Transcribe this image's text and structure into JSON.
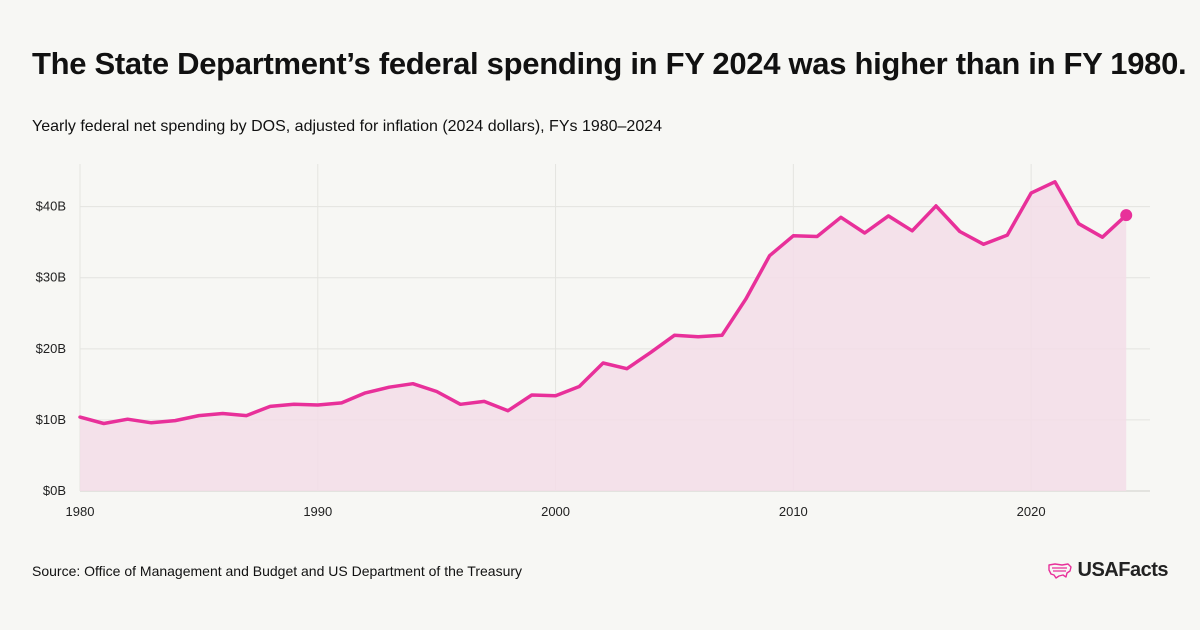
{
  "title": "The State Department’s federal spending in FY 2024 was higher than in FY 1980.",
  "subtitle": "Yearly federal net spending by DOS, adjusted for inflation (2024 dollars), FYs 1980–2024",
  "source": "Source: Office of Management and Budget and US Department of the Treasury",
  "brand": {
    "name": "USAFacts",
    "logo_icon": "us-map-icon"
  },
  "colors": {
    "line": "#e8309a",
    "area": "#f3dde8",
    "grid": "#e4e4e0",
    "background": "#f7f7f4"
  },
  "chart_data": {
    "type": "area",
    "title": "Yearly federal net spending by DOS, adjusted for inflation (2024 dollars), FYs 1980–2024",
    "xlabel": "",
    "ylabel": "",
    "unit": "billions of 2024 dollars",
    "xlim": [
      1980,
      2025
    ],
    "ylim": [
      0,
      46
    ],
    "x_ticks": [
      1980,
      1990,
      2000,
      2010,
      2020
    ],
    "y_ticks": [
      0,
      10,
      20,
      30,
      40
    ],
    "y_tick_labels": [
      "$0B",
      "$10B",
      "$20B",
      "$30B",
      "$40B"
    ],
    "x": [
      1980,
      1981,
      1982,
      1983,
      1984,
      1985,
      1986,
      1987,
      1988,
      1989,
      1990,
      1991,
      1992,
      1993,
      1994,
      1995,
      1996,
      1997,
      1998,
      1999,
      2000,
      2001,
      2002,
      2003,
      2004,
      2005,
      2006,
      2007,
      2008,
      2009,
      2010,
      2011,
      2012,
      2013,
      2014,
      2015,
      2016,
      2017,
      2018,
      2019,
      2020,
      2021,
      2022,
      2023,
      2024
    ],
    "series": [
      {
        "name": "DOS net spending",
        "values": [
          10.4,
          9.5,
          10.1,
          9.6,
          9.9,
          10.6,
          10.9,
          10.6,
          11.9,
          12.2,
          12.1,
          12.4,
          13.8,
          14.6,
          15.1,
          14.0,
          12.2,
          12.6,
          11.3,
          13.5,
          13.4,
          14.7,
          18.0,
          17.2,
          19.5,
          21.9,
          21.7,
          21.9,
          27.0,
          33.1,
          35.9,
          35.8,
          38.5,
          36.3,
          38.7,
          36.6,
          40.1,
          36.5,
          34.7,
          36.0,
          41.9,
          43.5,
          37.6,
          35.7,
          38.8
        ]
      }
    ],
    "highlight": {
      "x": 2024,
      "y": 38.8
    },
    "grid": true
  }
}
